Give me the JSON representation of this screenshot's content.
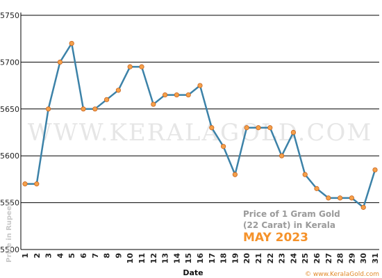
{
  "chart_data": {
    "type": "line",
    "title": "",
    "xlabel": "Date",
    "ylabel": "Price in Rupees",
    "x": [
      1,
      2,
      3,
      4,
      5,
      6,
      7,
      8,
      9,
      10,
      11,
      12,
      13,
      14,
      15,
      16,
      17,
      18,
      19,
      20,
      21,
      22,
      23,
      24,
      25,
      26,
      27,
      28,
      29,
      30,
      31
    ],
    "series": [
      {
        "values": [
          5570,
          5570,
          5650,
          5700,
          5720,
          5650,
          5650,
          5660,
          5670,
          5695,
          5695,
          5655,
          5665,
          5665,
          5665,
          5675,
          5630,
          5610,
          5580,
          5630,
          5630,
          5630,
          5600,
          5625,
          5580,
          5565,
          5555,
          5555,
          5555,
          5545,
          5585
        ]
      }
    ],
    "ylim": [
      5500,
      5750
    ],
    "yticks": [
      5500,
      5550,
      5600,
      5650,
      5700,
      5750
    ],
    "grid": true,
    "legend": "none",
    "colors": {
      "line": "#3c82a8",
      "marker": "#f5a04a",
      "marker_edge": "#c8641e",
      "grid": "#000000"
    },
    "watermark": "WWW.KERALAGOLD.COM",
    "annotation": {
      "line1": "Price of 1 Gram Gold",
      "line2": "(22 Carat) in Kerala",
      "line3": "MAY 2023"
    },
    "credit": "© www.KeralaGold.com"
  }
}
